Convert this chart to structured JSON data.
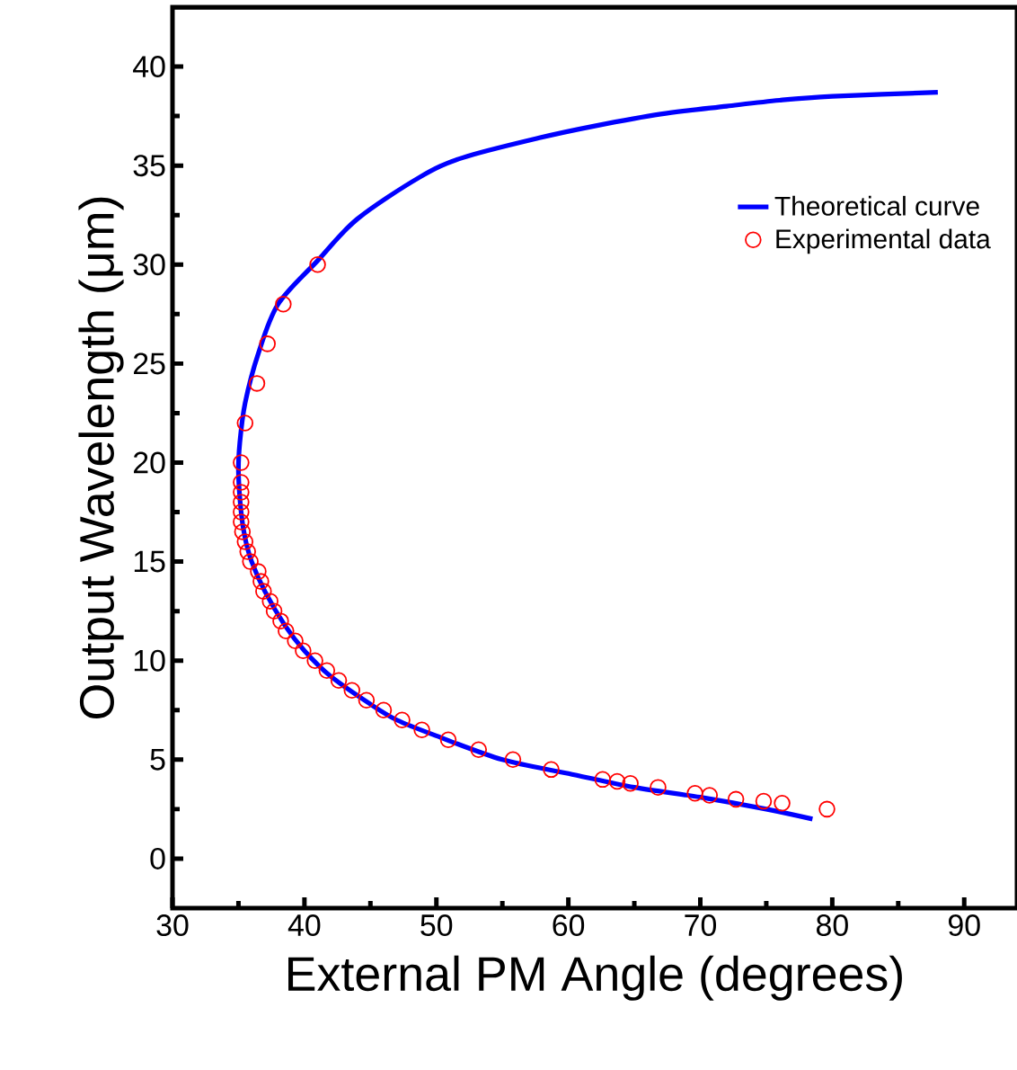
{
  "chart_data": {
    "type": "line",
    "xlabel": "External PM Angle (degrees)",
    "ylabel": "Output Wavelength (μm)",
    "xlim": [
      30,
      94
    ],
    "ylim": [
      -2.5,
      43
    ],
    "xticks": [
      30,
      40,
      50,
      60,
      70,
      80,
      90
    ],
    "yticks": [
      0,
      5,
      10,
      15,
      20,
      25,
      30,
      35,
      40
    ],
    "grid": false,
    "legend": "right",
    "series": [
      {
        "name": "Theoretical curve",
        "color": "#0000ff",
        "marker": "none",
        "line_style": "solid",
        "x": [
          78.5,
          75,
          70,
          65,
          60,
          55,
          50,
          47,
          45,
          42,
          40,
          38.5,
          37,
          36,
          35.5,
          35.2,
          35.0,
          35.1,
          35.5,
          36.5,
          38,
          41,
          44,
          48.7,
          52,
          57.8,
          62,
          67,
          72,
          76,
          80,
          88
        ],
        "values": [
          2.0,
          2.5,
          3.1,
          3.6,
          4.3,
          5.0,
          6.2,
          7.0,
          7.8,
          9.2,
          10.5,
          11.8,
          13.5,
          15.0,
          16.2,
          17.5,
          19.5,
          21,
          23.0,
          25.5,
          28.0,
          30.2,
          32.3,
          34.4,
          35.4,
          36.4,
          37.0,
          37.6,
          38.0,
          38.3,
          38.5,
          38.7
        ]
      },
      {
        "name": "Experimental data",
        "type": "scatter",
        "color": "#ff0000",
        "marker": "circle",
        "x": [
          41.0,
          38.4,
          37.2,
          36.4,
          35.5,
          35.2,
          35.2,
          35.2,
          35.2,
          35.2,
          35.2,
          35.3,
          35.5,
          35.7,
          35.9,
          36.5,
          36.7,
          36.9,
          37.4,
          37.7,
          38.2,
          38.6,
          39.3,
          39.9,
          40.8,
          41.7,
          42.6,
          43.6,
          44.7,
          46.0,
          47.4,
          48.9,
          50.9,
          53.2,
          55.8,
          58.7,
          62.6,
          63.7,
          64.7,
          66.8,
          69.6,
          70.7,
          72.7,
          74.8,
          76.2,
          79.6
        ],
        "values": [
          30,
          28,
          26,
          24,
          22,
          20,
          19,
          18.5,
          18,
          17.5,
          17,
          16.5,
          16,
          15.5,
          15,
          14.5,
          14,
          13.5,
          13,
          12.5,
          12,
          11.5,
          11,
          10.5,
          10,
          9.5,
          9,
          8.5,
          8,
          7.5,
          7,
          6.5,
          6,
          5.5,
          5,
          4.5,
          4,
          3.9,
          3.8,
          3.6,
          3.3,
          3.2,
          3.0,
          2.9,
          2.8,
          2.5
        ]
      }
    ]
  }
}
